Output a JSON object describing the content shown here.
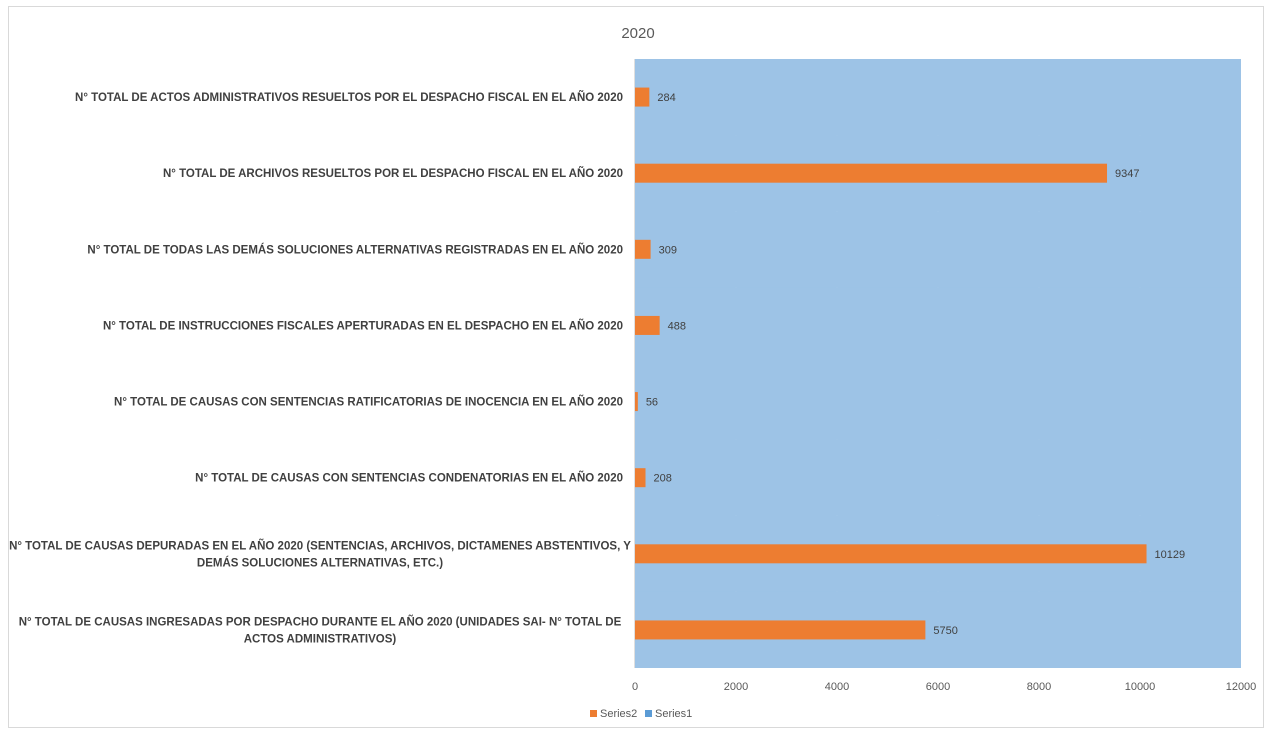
{
  "chart_data": {
    "type": "bar",
    "orientation": "horizontal",
    "title": "2020",
    "categories": [
      [
        "N° TOTAL DE ACTOS ADMINISTRATIVOS RESUELTOS POR EL DESPACHO FISCAL EN EL AÑO 2020"
      ],
      [
        "N° TOTAL DE ARCHIVOS RESUELTOS POR EL DESPACHO FISCAL EN EL AÑO 2020"
      ],
      [
        "N° TOTAL DE TODAS LAS DEMÁS SOLUCIONES ALTERNATIVAS REGISTRADAS EN EL AÑO 2020"
      ],
      [
        "N° TOTAL DE INSTRUCCIONES FISCALES APERTURADAS EN EL DESPACHO EN EL AÑO 2020"
      ],
      [
        "N° TOTAL DE CAUSAS CON SENTENCIAS RATIFICATORIAS DE INOCENCIA EN EL AÑO 2020"
      ],
      [
        "N° TOTAL DE CAUSAS CON SENTENCIAS CONDENATORIAS EN EL AÑO 2020"
      ],
      [
        "N° TOTAL DE CAUSAS DEPURADAS EN EL AÑO 2020 (SENTENCIAS, ARCHIVOS, DICTAMENES ABSTENTIVOS,  Y",
        "DEMÁS SOLUCIONES ALTERNATIVAS, ETC.)"
      ],
      [
        "N°  TOTAL DE CAUSAS INGRESADAS POR DESPACHO DURANTE EL AÑO 2020 (UNIDADES SAI- N° TOTAL DE",
        "ACTOS ADMINISTRATIVOS)"
      ]
    ],
    "series": [
      {
        "name": "Series2",
        "color": "#ed7d31",
        "values": [
          284,
          9347,
          309,
          488,
          56,
          208,
          10129,
          5750
        ]
      },
      {
        "name": "Series1",
        "color": "#9dc3e6",
        "values": [
          12000,
          12000,
          12000,
          12000,
          12000,
          12000,
          12000,
          12000
        ]
      }
    ],
    "xlim": [
      0,
      12000
    ],
    "xticks": [
      "0",
      "2000",
      "4000",
      "6000",
      "8000",
      "10000",
      "12000"
    ],
    "grid": true,
    "legend": "bottom",
    "plot_background": "#9dc3e6",
    "gridline_color": "#c9dff2"
  }
}
